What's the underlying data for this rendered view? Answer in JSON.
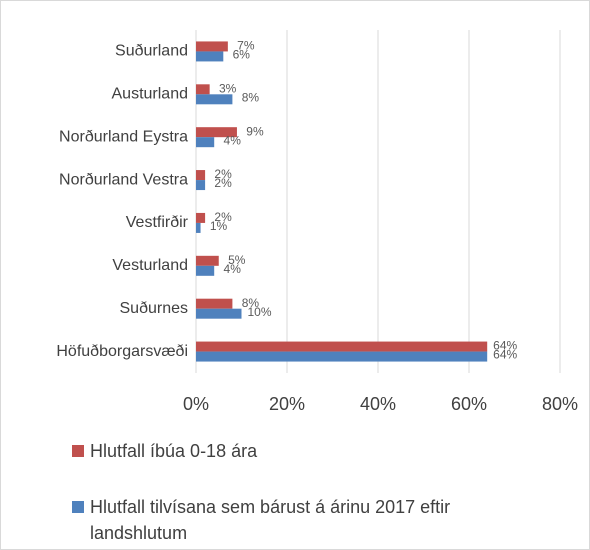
{
  "chart_data": {
    "type": "bar",
    "orientation": "horizontal",
    "categories": [
      "Suðurland",
      "Austurland",
      "Norðurland Eystra",
      "Norðurland Vestra",
      "Vestfirðir",
      "Vesturland",
      "Suðurnes",
      "Höfuðborgarsvæði"
    ],
    "series": [
      {
        "name": "Hlutfall íbúa 0-18 ára",
        "color": "#c0504d",
        "values": [
          7,
          3,
          9,
          2,
          2,
          5,
          8,
          64
        ],
        "value_labels": [
          "7%",
          "3%",
          "9%",
          "2%",
          "2%",
          "5%",
          "8%",
          "64%"
        ]
      },
      {
        "name": "Hlutfall tilvísana sem bárust á árinu 2017 eftir landshlutum",
        "color": "#4f81bd",
        "values": [
          6,
          8,
          4,
          2,
          1,
          4,
          10,
          64
        ],
        "value_labels": [
          "6%",
          "8%",
          "4%",
          "2%",
          "1%",
          "4%",
          "10%",
          "64%"
        ]
      }
    ],
    "xlim": [
      0,
      80
    ],
    "xticks": [
      {
        "value": 0,
        "label": "0%"
      },
      {
        "value": 20,
        "label": "20%"
      },
      {
        "value": 40,
        "label": "40%"
      },
      {
        "value": 60,
        "label": "60%"
      },
      {
        "value": 80,
        "label": "80%"
      }
    ],
    "grid": true,
    "legend": "bottom"
  }
}
